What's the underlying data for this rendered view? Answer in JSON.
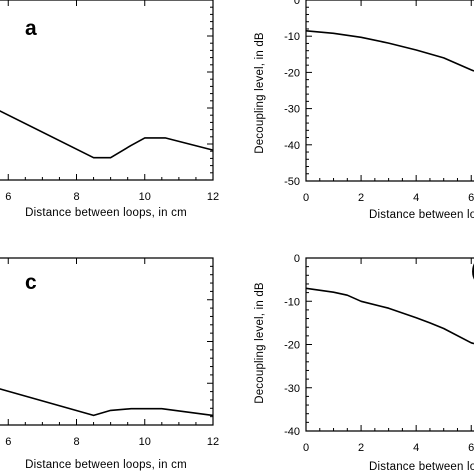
{
  "chart_data": [
    {
      "id": "a",
      "type": "line",
      "panel_label": "a",
      "xlabel": "Distance between loops, in cm",
      "ylabel": "",
      "xlim": [
        4,
        12
      ],
      "ylim": [
        -50,
        0
      ],
      "x_ticks": [
        6,
        8,
        10,
        12
      ],
      "y_ticks": [],
      "series": [
        {
          "x": [
            4,
            8.5,
            9.0,
            9.6,
            10.0,
            10.6,
            12.0
          ],
          "y": [
            -22.5,
            -43.8,
            -43.8,
            -40.4,
            -38.3,
            -38.3,
            -41.7
          ]
        }
      ]
    },
    {
      "id": "b",
      "type": "line",
      "panel_label": "",
      "xlabel": "Distance between loops, in cm",
      "ylabel": "Decoupling level, in dB",
      "xlim": [
        0,
        6.1
      ],
      "ylim": [
        -50,
        0
      ],
      "x_ticks": [
        0,
        2,
        4,
        6
      ],
      "y_ticks": [
        0,
        -10,
        -20,
        -30,
        -40,
        -50
      ],
      "series": [
        {
          "x": [
            0,
            1,
            2,
            3,
            4,
            5,
            6,
            6.1
          ],
          "y": [
            -8.5,
            -9.2,
            -10.3,
            -11.9,
            -13.8,
            -16.0,
            -19.3,
            -19.6
          ]
        }
      ]
    },
    {
      "id": "c",
      "type": "line",
      "panel_label": "c",
      "xlabel": "Distance between loops, in cm",
      "ylabel": "",
      "xlim": [
        4,
        12
      ],
      "ylim": [
        -40,
        0
      ],
      "x_ticks": [
        6,
        8,
        10,
        12
      ],
      "y_ticks": [],
      "series": [
        {
          "x": [
            4,
            8.5,
            9.0,
            9.6,
            10.0,
            10.5,
            12.0
          ],
          "y": [
            -27.3,
            -37.7,
            -36.5,
            -36.1,
            -36.1,
            -36.1,
            -37.7
          ]
        }
      ]
    },
    {
      "id": "d",
      "type": "line",
      "panel_label": "",
      "xlabel": "Distance between loops, in cm",
      "ylabel": "Decoupling level, in dB",
      "xlim": [
        0,
        6.1
      ],
      "ylim": [
        -40,
        0
      ],
      "x_ticks": [
        0,
        2,
        4,
        6
      ],
      "y_ticks": [
        0,
        -10,
        -20,
        -30,
        -40
      ],
      "series": [
        {
          "x": [
            0,
            1,
            1.5,
            2,
            3,
            4,
            4.5,
            5,
            6,
            6.1
          ],
          "y": [
            -7.0,
            -7.9,
            -8.6,
            -10.0,
            -11.6,
            -13.8,
            -15.0,
            -16.3,
            -19.6,
            -19.8
          ]
        }
      ]
    }
  ],
  "panel_d_partial_label": "("
}
